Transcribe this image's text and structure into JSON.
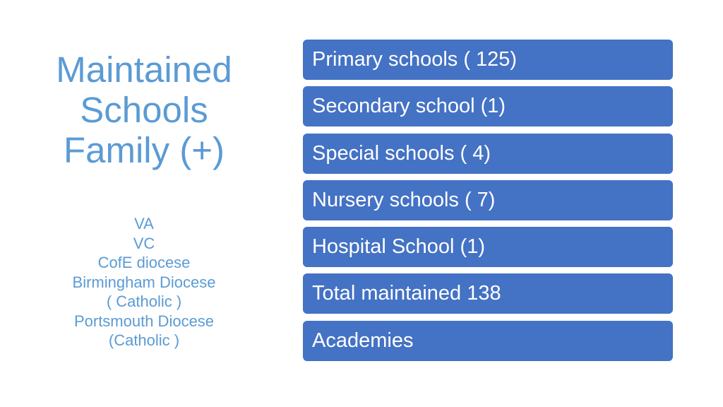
{
  "title_lines": [
    "Maintained",
    "Schools",
    "Family (+)"
  ],
  "sub_lines": [
    "VA",
    "VC",
    "CofE diocese",
    "Birmingham Diocese",
    "( Catholic )",
    "Portsmouth Diocese",
    "(Catholic )"
  ],
  "boxes": [
    "Primary schools ( 125)",
    "Secondary school (1)",
    "Special schools ( 4)",
    "Nursery schools ( 7)",
    "Hospital School (1)",
    "Total maintained 138",
    "Academies"
  ],
  "colors": {
    "title": "#5b9bd5",
    "box_fill": "#4472c4",
    "box_text": "#ffffff"
  }
}
